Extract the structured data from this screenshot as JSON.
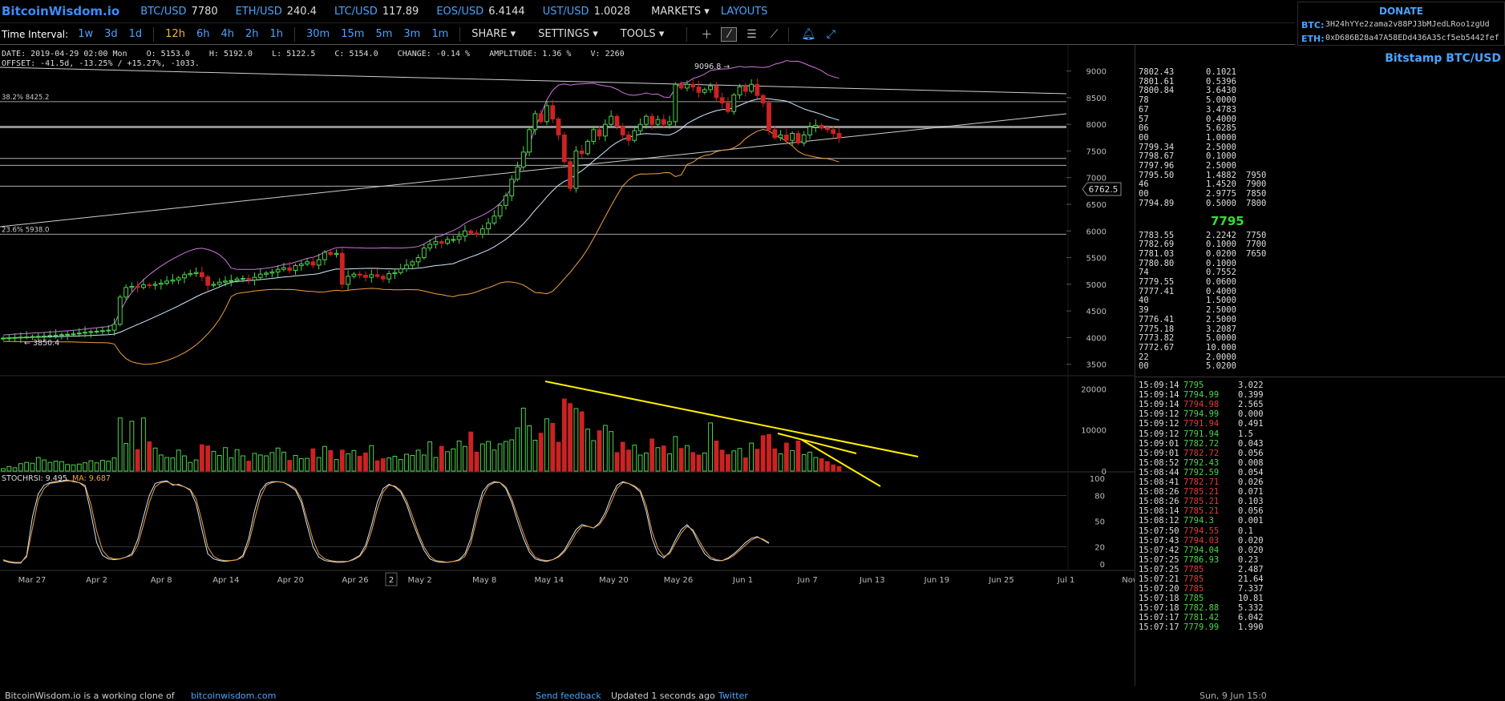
{
  "site": {
    "logo": "BitcoinWisdom.io"
  },
  "tickers": [
    {
      "sym": "BTC/USD",
      "val": "7780"
    },
    {
      "sym": "ETH/USD",
      "val": "240.4"
    },
    {
      "sym": "LTC/USD",
      "val": "117.89"
    },
    {
      "sym": "EOS/USD",
      "val": "6.4144"
    },
    {
      "sym": "UST/USD",
      "val": "1.0028"
    }
  ],
  "nav": {
    "markets": "MARKETS",
    "layouts": "LAYOUTS"
  },
  "donate": {
    "title": "DONATE",
    "btc_label": "BTC:",
    "btc_addr": "3H24hYYe2zama2v88PJ3bMJedLRoo1zgUd",
    "eth_label": "ETH:",
    "eth_addr": "0xD686B28a47A58EDd436A35cf5eb5442fef"
  },
  "toolbar": {
    "interval_label": "Time Interval:",
    "intervals": [
      "1w",
      "3d",
      "1d",
      "12h",
      "6h",
      "4h",
      "2h",
      "1h",
      "30m",
      "15m",
      "5m",
      "3m",
      "1m"
    ],
    "active_interval": "12h",
    "share": "SHARE",
    "settings": "SETTINGS",
    "tools": "TOOLS"
  },
  "info": {
    "line1": "DATE: 2019-04-29 02:00 Mon    O: 5153.0    H: 5192.0    L: 5122.5    C: 5154.0    CHANGE: -0.14 %    AMPLITUDE: 1.36 %    V: 2260",
    "line2": "OFFSET: -41.5d, -13.25% / +15.27%, -1033."
  },
  "chart_data": {
    "type": "candlestick",
    "price_axis": [
      "9000",
      "8500",
      "8000",
      "7500",
      "7000",
      "6500",
      "6000",
      "5500",
      "5000",
      "4500",
      "4000",
      "3500"
    ],
    "volume_axis": [
      "20000",
      "10000",
      "0"
    ],
    "rsi_axis": [
      "100",
      "80",
      "50",
      "20",
      "0"
    ],
    "date_labels": [
      "Mar 27",
      "Apr 2",
      "Apr 8",
      "Apr 14",
      "Apr 20",
      "Apr 26",
      "May 2",
      "May 8",
      "May 14",
      "May 20",
      "May 26",
      "Jun 1",
      "Jun 7",
      "Jun 13",
      "Jun 19",
      "Jun 25",
      "Jul 1",
      "Now"
    ],
    "cursor_date_marker": "2",
    "fib_labels": [
      "38.2% 8425.2",
      "23.6% 5938.0"
    ],
    "high_marker": "9096.8 →",
    "low_marker": "← 3850.4",
    "crosshair_price": "6762.5",
    "stochrsi_label": "STOCHRSI: 9.495",
    "ma_label": "MA: 9.687",
    "price_ylim": [
      3300,
      9400
    ],
    "close_series": [
      3990,
      3995,
      4002,
      4008,
      4012,
      4020,
      4025,
      4030,
      4040,
      4045,
      4055,
      4062,
      4070,
      4085,
      4100,
      4112,
      4120,
      4130,
      4140,
      4250,
      4760,
      4940,
      4960,
      4940,
      4990,
      4980,
      5000,
      5020,
      5060,
      5080,
      5120,
      5180,
      5200,
      5220,
      5140,
      4980,
      5000,
      5040,
      5060,
      5070,
      5100,
      5110,
      5080,
      5130,
      5190,
      5210,
      5230,
      5280,
      5310,
      5260,
      5350,
      5380,
      5420,
      5360,
      5460,
      5600,
      5560,
      5580,
      5000,
      5150,
      5190,
      5170,
      5130,
      5180,
      5150,
      5100,
      5200,
      5220,
      5290,
      5360,
      5420,
      5500,
      5680,
      5750,
      5800,
      5770,
      5840,
      5840,
      5900,
      6000,
      5960,
      5940,
      6040,
      6150,
      6280,
      6480,
      6660,
      6970,
      7200,
      7480,
      7900,
      8200,
      8050,
      8350,
      8100,
      7800,
      7300,
      6800,
      7500,
      7450,
      7680,
      7900,
      7780,
      8000,
      8150,
      7960,
      7800,
      7700,
      7880,
      8000,
      8150,
      8000,
      8090,
      8000,
      8050,
      8750,
      8680,
      8750,
      8700,
      8600,
      8650,
      8720,
      8500,
      8400,
      8240,
      8550,
      8700,
      8620,
      8750,
      8540,
      8400,
      7900,
      7750,
      7800,
      7700,
      7830,
      7650,
      7800,
      7950,
      7980,
      7930,
      7900,
      7830,
      7750
    ],
    "volume_series": [
      0.6,
      1.1,
      0.8,
      1.8,
      2.1,
      1.9,
      3.3,
      2.7,
      2.1,
      2.4,
      2.3,
      1.6,
      1.5,
      1.7,
      2.0,
      2.5,
      2.0,
      2.6,
      2.4,
      3.2,
      12.9,
      6.7,
      12.1,
      5.2,
      12.9,
      7.1,
      5.6,
      3.9,
      3.3,
      3.2,
      5.1,
      3.7,
      2.1,
      2.7,
      6.4,
      6.1,
      4.8,
      3.8,
      5.7,
      3.2,
      5.2,
      3.7,
      2.4,
      4.3,
      3.9,
      3.7,
      4.5,
      5.6,
      4.6,
      2.6,
      3.8,
      3.0,
      3.1,
      5.4,
      3.3,
      6.0,
      5.0,
      2.8,
      5.1,
      4.2,
      5.0,
      3.6,
      4.4,
      6.2,
      2.5,
      3.0,
      3.2,
      3.6,
      2.8,
      4.1,
      3.8,
      5.1,
      3.9,
      7.1,
      3.3,
      6.0,
      4.7,
      5.4,
      7.3,
      6.0,
      9.5,
      4.6,
      6.6,
      7.2,
      5.1,
      6.6,
      7.2,
      7.6,
      10.5,
      15.3,
      11.0,
      7.5,
      9.2,
      12.7,
      11.6,
      7.0,
      17.5,
      16.4,
      15.2,
      14.4,
      10.2,
      7.4,
      9.8,
      11.1,
      9.6,
      4.5,
      7.0,
      5.1,
      6.3,
      3.9,
      4.4,
      7.8,
      5.7,
      6.1,
      4.2,
      8.4,
      5.5,
      6.2,
      4.5,
      3.9,
      4.4,
      11.7,
      7.3,
      5.1,
      4.0,
      4.9,
      5.5,
      3.2,
      6.8,
      5.3,
      8.6,
      8.9,
      5.4,
      4.2,
      6.8,
      5.0,
      7.3,
      4.0,
      4.6,
      3.3,
      3.0,
      2.3,
      1.5,
      1.1
    ],
    "stochrsi_series": [
      4,
      2,
      1,
      1,
      10,
      55,
      82,
      92,
      95,
      96,
      97,
      98,
      96,
      95,
      90,
      60,
      25,
      10,
      6,
      5,
      6,
      8,
      12,
      28,
      55,
      80,
      94,
      96,
      97,
      92,
      93,
      90,
      86,
      70,
      40,
      12,
      6,
      4,
      3,
      4,
      5,
      10,
      30,
      62,
      85,
      94,
      96,
      96,
      95,
      91,
      86,
      72,
      45,
      20,
      8,
      4,
      3,
      2,
      2,
      3,
      6,
      10,
      22,
      45,
      72,
      88,
      93,
      90,
      84,
      70,
      50,
      32,
      16,
      6,
      3,
      2,
      2,
      3,
      5,
      12,
      30,
      60,
      84,
      93,
      96,
      95,
      88,
      72,
      50,
      30,
      14,
      6,
      4,
      3,
      5,
      9,
      16,
      28,
      40,
      46,
      44,
      42,
      48,
      60,
      78,
      92,
      96,
      94,
      90,
      84,
      62,
      30,
      12,
      7,
      14,
      28,
      40,
      46,
      38,
      24,
      12,
      6,
      4,
      4,
      7,
      12,
      18,
      25,
      30,
      32,
      28,
      24
    ],
    "ma_series": [
      5,
      3,
      2,
      2,
      8,
      42,
      75,
      88,
      94,
      95,
      96,
      97,
      97,
      95,
      92,
      70,
      38,
      16,
      8,
      6,
      6,
      8,
      10,
      22,
      46,
      72,
      90,
      95,
      96,
      93,
      92,
      90,
      87,
      76,
      50,
      20,
      9,
      5,
      4,
      4,
      5,
      8,
      24,
      52,
      78,
      92,
      95,
      96,
      95,
      92,
      88,
      76,
      52,
      28,
      12,
      6,
      4,
      3,
      3,
      3,
      5,
      9,
      18,
      38,
      64,
      84,
      92,
      91,
      86,
      74,
      56,
      36,
      20,
      9,
      4,
      3,
      2,
      3,
      4,
      9,
      24,
      52,
      78,
      91,
      95,
      95,
      90,
      76,
      56,
      36,
      18,
      8,
      5,
      4,
      5,
      8,
      14,
      24,
      36,
      44,
      44,
      42,
      46,
      56,
      72,
      88,
      95,
      94,
      91,
      86,
      68,
      38,
      18,
      9,
      12,
      24,
      36,
      44,
      40,
      28,
      16,
      8,
      5,
      4,
      6,
      10,
      16,
      22,
      28,
      31,
      29,
      25
    ]
  },
  "orderbook": {
    "exchange": "Bitstamp BTC/USD",
    "asks": [
      {
        "p": "7802.43",
        "a": "0.1021",
        "s": ""
      },
      {
        "p": "7801.61",
        "a": "0.5396",
        "s": ""
      },
      {
        "p": "7800.84",
        "a": "3.6430",
        "s": ""
      },
      {
        "p": "78",
        "a": "5.0000",
        "s": ""
      },
      {
        "p": "67",
        "a": "3.4783",
        "s": ""
      },
      {
        "p": "57",
        "a": "0.4000",
        "s": ""
      },
      {
        "p": "06",
        "a": "5.6285",
        "s": ""
      },
      {
        "p": "00",
        "a": "1.0000",
        "s": ""
      },
      {
        "p": "7799.34",
        "a": "2.5000",
        "s": ""
      },
      {
        "p": "7798.67",
        "a": "0.1000",
        "s": ""
      },
      {
        "p": "7797.96",
        "a": "2.5000",
        "s": ""
      },
      {
        "p": "7795.50",
        "a": "1.4882",
        "s": "7950"
      },
      {
        "p": "46",
        "a": "1.4520",
        "s": "7900"
      },
      {
        "p": "00",
        "a": "2.9775",
        "s": "7850"
      },
      {
        "p": "7794.89",
        "a": "0.5000",
        "s": "7800"
      }
    ],
    "last_price": "7795",
    "bids": [
      {
        "p": "7783.55",
        "a": "2.2242",
        "s": "7750"
      },
      {
        "p": "7782.69",
        "a": "0.1000",
        "s": "7700"
      },
      {
        "p": "7781.03",
        "a": "0.0200",
        "s": "7650"
      },
      {
        "p": "7780.80",
        "a": "0.1000",
        "s": ""
      },
      {
        "p": "74",
        "a": "0.7552",
        "s": ""
      },
      {
        "p": "7779.55",
        "a": "0.0600",
        "s": ""
      },
      {
        "p": "7777.41",
        "a": "0.4000",
        "s": ""
      },
      {
        "p": "40",
        "a": "1.5000",
        "s": ""
      },
      {
        "p": "39",
        "a": "2.5000",
        "s": ""
      },
      {
        "p": "7776.41",
        "a": "2.5000",
        "s": ""
      },
      {
        "p": "7775.18",
        "a": "3.2087",
        "s": ""
      },
      {
        "p": "7773.82",
        "a": "5.0000",
        "s": ""
      },
      {
        "p": "7772.67",
        "a": "10.000",
        "s": ""
      },
      {
        "p": "22",
        "a": "2.0000",
        "s": ""
      },
      {
        "p": "00",
        "a": "5.0200",
        "s": ""
      }
    ]
  },
  "trades": [
    {
      "t": "15:09:14",
      "p": "7795",
      "d": "up",
      "a": "3.022"
    },
    {
      "t": "15:09:14",
      "p": "7794.99",
      "d": "up",
      "a": "0.399"
    },
    {
      "t": "15:09:14",
      "p": "7794.98",
      "d": "dn",
      "a": "2.565"
    },
    {
      "t": "15:09:12",
      "p": "7794.99",
      "d": "up",
      "a": "0.000"
    },
    {
      "t": "15:09:12",
      "p": "7791.94",
      "d": "dn",
      "a": "0.491"
    },
    {
      "t": "15:09:12",
      "p": "7791.94",
      "d": "up",
      "a": "1.5"
    },
    {
      "t": "15:09:01",
      "p": "7782.72",
      "d": "up",
      "a": "0.043"
    },
    {
      "t": "15:09:01",
      "p": "7782.72",
      "d": "dn",
      "a": "0.056"
    },
    {
      "t": "15:08:52",
      "p": "7792.43",
      "d": "up",
      "a": "0.008"
    },
    {
      "t": "15:08:44",
      "p": "7792.59",
      "d": "up",
      "a": "0.054"
    },
    {
      "t": "15:08:41",
      "p": "7782.71",
      "d": "dn",
      "a": "0.026"
    },
    {
      "t": "15:08:26",
      "p": "7785.21",
      "d": "dn",
      "a": "0.071"
    },
    {
      "t": "15:08:26",
      "p": "7785.21",
      "d": "dn",
      "a": "0.103"
    },
    {
      "t": "15:08:14",
      "p": "7785.21",
      "d": "dn",
      "a": "0.056"
    },
    {
      "t": "15:08:12",
      "p": "7794.3",
      "d": "up",
      "a": "0.001"
    },
    {
      "t": "15:07:50",
      "p": "7794.55",
      "d": "dn",
      "a": "0.1"
    },
    {
      "t": "15:07:43",
      "p": "7794.03",
      "d": "dn",
      "a": "0.020"
    },
    {
      "t": "15:07:42",
      "p": "7794.04",
      "d": "up",
      "a": "0.020"
    },
    {
      "t": "15:07:25",
      "p": "7786.93",
      "d": "up",
      "a": "0.23"
    },
    {
      "t": "15:07:25",
      "p": "7785",
      "d": "dn",
      "a": "2.487"
    },
    {
      "t": "15:07:21",
      "p": "7785",
      "d": "dn",
      "a": "21.64"
    },
    {
      "t": "15:07:20",
      "p": "7785",
      "d": "dn",
      "a": "7.337"
    },
    {
      "t": "15:07:18",
      "p": "7785",
      "d": "up",
      "a": "10.81"
    },
    {
      "t": "15:07:18",
      "p": "7782.88",
      "d": "up",
      "a": "5.332"
    },
    {
      "t": "15:07:17",
      "p": "7781.42",
      "d": "up",
      "a": "6.042"
    },
    {
      "t": "15:07:17",
      "p": "7779.99",
      "d": "up",
      "a": "1.990"
    }
  ],
  "footer": {
    "clone_text": "BitcoinWisdom.io is a working clone of",
    "clone_link": "bitcoinwisdom.com",
    "feedback": "Send feedback",
    "updated": "Updated 1 seconds ago",
    "twitter": "Twitter",
    "clock": "Sun, 9 Jun 15:0"
  },
  "colors": {
    "up": "#4cd44c",
    "down": "#cc2222",
    "accent": "#49a3ff",
    "trend": "#ffee00",
    "boll_upper": "#cc77dd",
    "boll_lower": "#f0a040",
    "ma": "#cfe8ff"
  }
}
